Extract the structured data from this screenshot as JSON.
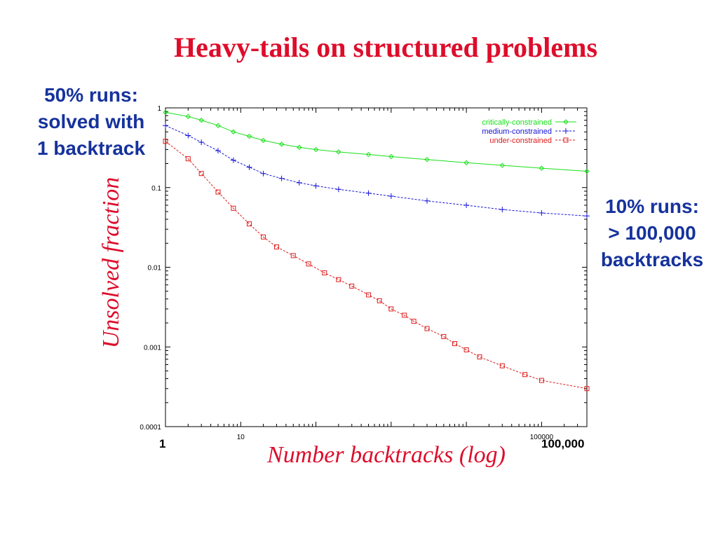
{
  "slide": {
    "title": "Heavy-tails on structured problems",
    "annotation_left": [
      "50% runs:",
      "solved with",
      "1 backtrack"
    ],
    "annotation_right": [
      "10% runs:",
      "> 100,000",
      "backtracks"
    ],
    "x_edge_left": "1",
    "x_edge_right": "100,000",
    "colors": {
      "title": "#dd0d2b",
      "annotation": "#16329c"
    }
  },
  "chart_data": {
    "type": "line",
    "title": "",
    "xlabel": "Number backtracks (log)",
    "ylabel": "Unsolved fraction",
    "x_scale": "log",
    "y_scale": "log",
    "xlim": [
      1,
      400000
    ],
    "ylim": [
      0.0001,
      1
    ],
    "x_ticks": [
      {
        "value": 10,
        "label": "10"
      },
      {
        "value": 100000,
        "label": "100000"
      }
    ],
    "y_ticks": [
      {
        "value": 1,
        "label": "1"
      },
      {
        "value": 0.1,
        "label": "0.1"
      },
      {
        "value": 0.01,
        "label": "0.01"
      },
      {
        "value": 0.001,
        "label": "0.001"
      },
      {
        "value": 0.0001,
        "label": "0.0001"
      }
    ],
    "grid": false,
    "legend": "top-right",
    "series": [
      {
        "name": "critically-constrained",
        "color": "#18e018",
        "marker": "diamond",
        "x": [
          1,
          2,
          3,
          5,
          8,
          13,
          20,
          35,
          60,
          100,
          200,
          500,
          1000,
          3000,
          10000,
          30000,
          100000,
          400000
        ],
        "y": [
          0.88,
          0.78,
          0.7,
          0.6,
          0.5,
          0.44,
          0.39,
          0.35,
          0.32,
          0.3,
          0.28,
          0.26,
          0.245,
          0.225,
          0.205,
          0.19,
          0.175,
          0.16
        ]
      },
      {
        "name": "medium-constrained",
        "color": "#1414d8",
        "marker": "plus",
        "x": [
          1,
          2,
          3,
          5,
          8,
          13,
          20,
          35,
          60,
          100,
          200,
          500,
          1000,
          3000,
          10000,
          30000,
          100000,
          400000
        ],
        "y": [
          0.6,
          0.45,
          0.37,
          0.29,
          0.22,
          0.18,
          0.15,
          0.13,
          0.115,
          0.105,
          0.095,
          0.085,
          0.078,
          0.068,
          0.06,
          0.053,
          0.048,
          0.044
        ]
      },
      {
        "name": "under-constrained",
        "color": "#dd1c1c",
        "marker": "square",
        "x": [
          1,
          2,
          3,
          5,
          8,
          13,
          20,
          30,
          50,
          80,
          130,
          200,
          300,
          500,
          700,
          1000,
          1500,
          2000,
          3000,
          5000,
          7000,
          10000,
          15000,
          30000,
          60000,
          100000,
          400000
        ],
        "y": [
          0.38,
          0.23,
          0.15,
          0.088,
          0.055,
          0.035,
          0.024,
          0.018,
          0.014,
          0.011,
          0.0085,
          0.007,
          0.0058,
          0.0045,
          0.0038,
          0.003,
          0.0025,
          0.0021,
          0.0017,
          0.00135,
          0.0011,
          0.00092,
          0.00075,
          0.00058,
          0.00045,
          0.00038,
          0.0003
        ]
      }
    ]
  }
}
